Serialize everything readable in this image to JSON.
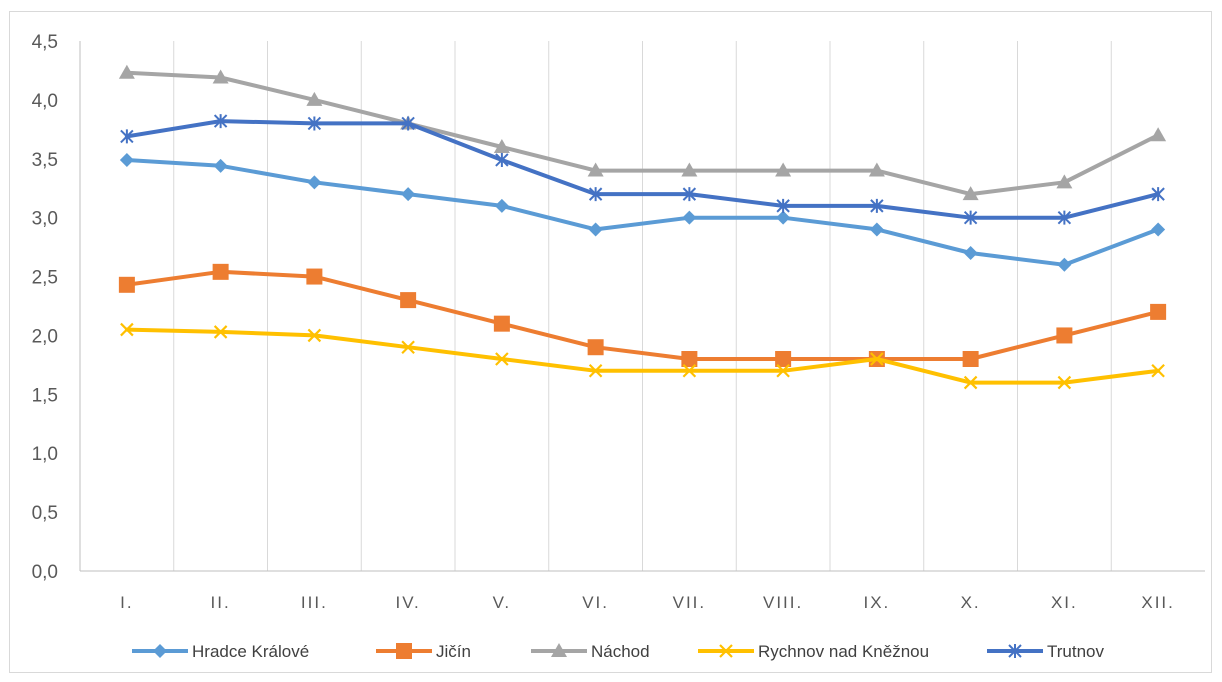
{
  "chart_data": {
    "type": "line",
    "title": "",
    "xlabel": "",
    "ylabel": "",
    "categories": [
      "I.",
      "II.",
      "III.",
      "IV.",
      "V.",
      "VI.",
      "VII.",
      "VIII.",
      "IX.",
      "X.",
      "XI.",
      "XII."
    ],
    "y_ticks": [
      "0,0",
      "0,5",
      "1,0",
      "1,5",
      "2,0",
      "2,5",
      "3,0",
      "3,5",
      "4,0",
      "4,5"
    ],
    "ylim": [
      0,
      4.5
    ],
    "grid": "vertical",
    "legend_position": "bottom",
    "series": [
      {
        "name": "Hradce Králové",
        "color": "#5b9bd5",
        "marker": "diamond",
        "values": [
          3.49,
          3.44,
          3.3,
          3.2,
          3.1,
          2.9,
          3.0,
          3.0,
          2.9,
          2.7,
          2.6,
          2.9
        ]
      },
      {
        "name": "Jičín",
        "color": "#ed7d31",
        "marker": "square",
        "values": [
          2.43,
          2.54,
          2.5,
          2.3,
          2.1,
          1.9,
          1.8,
          1.8,
          1.8,
          1.8,
          2.0,
          2.2
        ]
      },
      {
        "name": "Náchod",
        "color": "#a5a5a5",
        "marker": "triangle",
        "values": [
          4.23,
          4.19,
          4.0,
          3.8,
          3.6,
          3.4,
          3.4,
          3.4,
          3.4,
          3.2,
          3.3,
          3.7
        ]
      },
      {
        "name": "Rychnov nad Kněžnou",
        "color": "#ffc000",
        "marker": "x",
        "values": [
          2.05,
          2.03,
          2.0,
          1.9,
          1.8,
          1.7,
          1.7,
          1.7,
          1.8,
          1.6,
          1.6,
          1.7
        ]
      },
      {
        "name": "Trutnov",
        "color": "#4472c4",
        "marker": "star",
        "values": [
          3.69,
          3.82,
          3.8,
          3.8,
          3.49,
          3.2,
          3.2,
          3.1,
          3.1,
          3.0,
          3.0,
          3.2
        ]
      }
    ]
  }
}
